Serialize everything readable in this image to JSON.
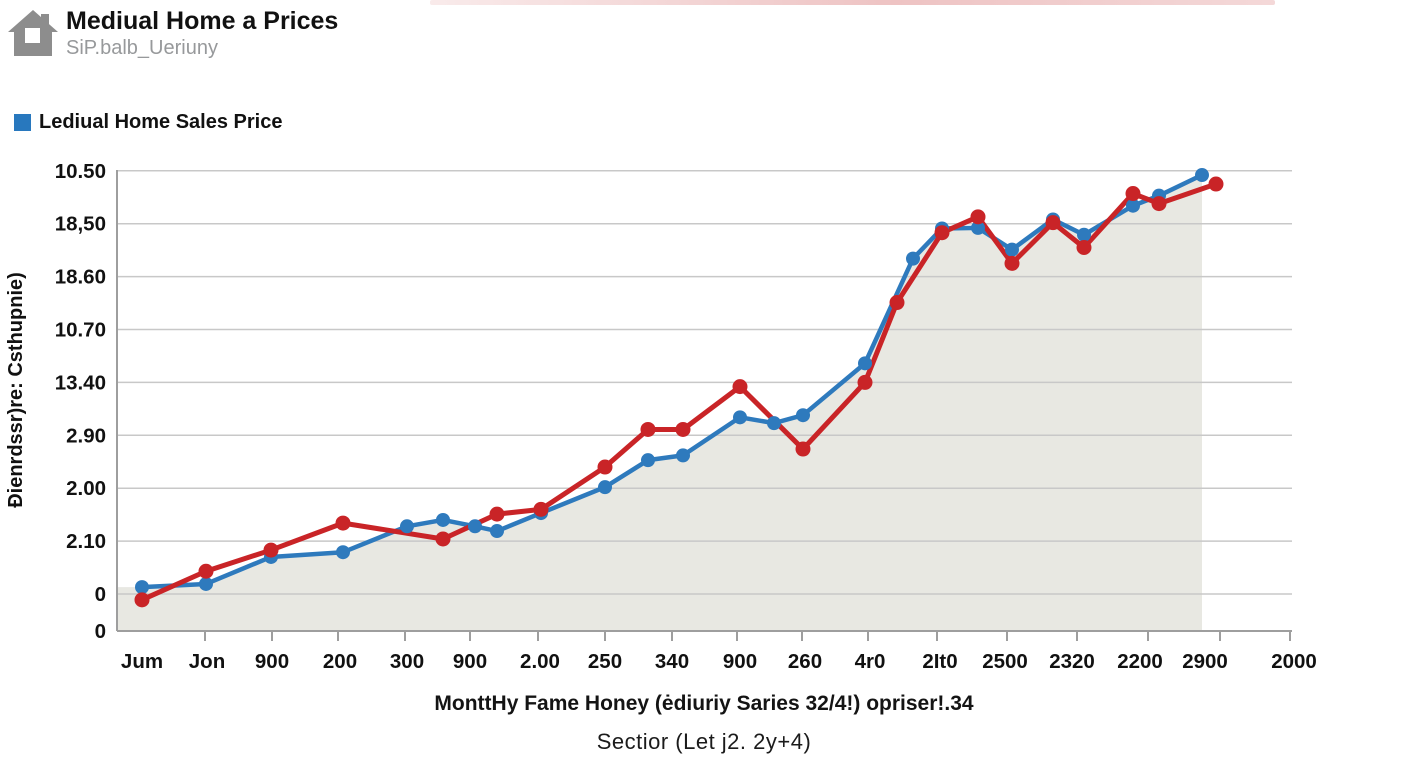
{
  "header": {
    "title": "Mediual Home a Prices",
    "subtitle": "SiP.balb_Ueriuny"
  },
  "legend": {
    "label": "Lediual Home Sales Price",
    "swatch_color": "#2878be"
  },
  "captions": {
    "line1": "MonttHy Fame Honey (ėdiuriy Saries 32/4!) opriser!.34",
    "line2": "Sectior (Let j2. 2y+4)"
  },
  "icons": {
    "house_color": "#8d8d8d"
  },
  "chart_data": {
    "type": "line",
    "title": "Lediual Home Sales Price",
    "xlabel": "",
    "ylabel": "Ðienrdssr)re: Csthupnie)",
    "grid": true,
    "legend_position": "top-left",
    "note": "axis tick text is garbled in source; series values v are in gridline units (0 = lowest gridline, 8 = top gridline)",
    "y_tick_labels": [
      "10.50",
      "18,50",
      "18.60",
      "10.70",
      "13.40",
      "2.90",
      "2.00",
      "2.10",
      "0",
      "0"
    ],
    "x_ticks": [
      {
        "label": "Jum",
        "x": 142
      },
      {
        "label": "Jon",
        "x": 207
      },
      {
        "label": "900",
        "x": 272
      },
      {
        "label": "200",
        "x": 340
      },
      {
        "label": "300",
        "x": 407
      },
      {
        "label": "900",
        "x": 470
      },
      {
        "label": "2.00",
        "x": 540
      },
      {
        "label": "250",
        "x": 605
      },
      {
        "label": "340",
        "x": 672
      },
      {
        "label": "900",
        "x": 740
      },
      {
        "label": "260",
        "x": 805
      },
      {
        "label": "4r0",
        "x": 870
      },
      {
        "label": "2It0",
        "x": 940
      },
      {
        "label": "2500",
        "x": 1005
      },
      {
        "label": "2320",
        "x": 1072
      },
      {
        "label": "2200",
        "x": 1140
      },
      {
        "label": "2900",
        "x": 1205
      },
      {
        "label": "2000",
        "x": 1294
      }
    ],
    "series": [
      {
        "name": "blue-series",
        "color": "#2e7abd",
        "line_width": 4.5,
        "marker_radius": 7,
        "points": [
          {
            "x": 142,
            "v": 0.13
          },
          {
            "x": 206,
            "v": 0.19
          },
          {
            "x": 271,
            "v": 0.7
          },
          {
            "x": 343,
            "v": 0.79
          },
          {
            "x": 407,
            "v": 1.28
          },
          {
            "x": 443,
            "v": 1.4
          },
          {
            "x": 475,
            "v": 1.28
          },
          {
            "x": 497,
            "v": 1.19
          },
          {
            "x": 541,
            "v": 1.53
          },
          {
            "x": 605,
            "v": 2.02
          },
          {
            "x": 648,
            "v": 2.53
          },
          {
            "x": 683,
            "v": 2.62
          },
          {
            "x": 740,
            "v": 3.34
          },
          {
            "x": 774,
            "v": 3.23
          },
          {
            "x": 803,
            "v": 3.38
          },
          {
            "x": 865,
            "v": 4.36
          },
          {
            "x": 913,
            "v": 6.34
          },
          {
            "x": 942,
            "v": 6.91
          },
          {
            "x": 978,
            "v": 6.92
          },
          {
            "x": 1012,
            "v": 6.51
          },
          {
            "x": 1053,
            "v": 7.08
          },
          {
            "x": 1084,
            "v": 6.79
          },
          {
            "x": 1133,
            "v": 7.34
          },
          {
            "x": 1159,
            "v": 7.53
          },
          {
            "x": 1202,
            "v": 7.92
          }
        ]
      },
      {
        "name": "red-series",
        "color": "#c92427",
        "line_width": 5,
        "marker_radius": 7.5,
        "points": [
          {
            "x": 142,
            "v": -0.11
          },
          {
            "x": 206,
            "v": 0.43
          },
          {
            "x": 271,
            "v": 0.83
          },
          {
            "x": 343,
            "v": 1.34
          },
          {
            "x": 443,
            "v": 1.04
          },
          {
            "x": 497,
            "v": 1.51
          },
          {
            "x": 541,
            "v": 1.6
          },
          {
            "x": 605,
            "v": 2.4
          },
          {
            "x": 648,
            "v": 3.11
          },
          {
            "x": 683,
            "v": 3.11
          },
          {
            "x": 740,
            "v": 3.92
          },
          {
            "x": 803,
            "v": 2.74
          },
          {
            "x": 865,
            "v": 4.0
          },
          {
            "x": 897,
            "v": 5.51
          },
          {
            "x": 942,
            "v": 6.83
          },
          {
            "x": 978,
            "v": 7.13
          },
          {
            "x": 1012,
            "v": 6.25
          },
          {
            "x": 1053,
            "v": 7.02
          },
          {
            "x": 1084,
            "v": 6.55
          },
          {
            "x": 1133,
            "v": 7.57
          },
          {
            "x": 1159,
            "v": 7.38
          },
          {
            "x": 1216,
            "v": 7.75
          }
        ]
      }
    ],
    "area": {
      "under_series": 0,
      "color": "#e8e8e2",
      "left_x": 117,
      "right_x": 1202
    },
    "layout": {
      "plot_left": 117,
      "plot_bottom": 631,
      "axis_right": 1292,
      "plot_top": 170,
      "unit_zero_y": 594,
      "unit_spacing": 52.9,
      "gridline_units": [
        0,
        1,
        2,
        3,
        4,
        5,
        6,
        7,
        8
      ],
      "x_tick_marks": [
        205,
        272,
        338,
        405,
        470,
        538,
        605,
        672,
        737,
        802,
        868,
        937,
        1007,
        1077,
        1148,
        1220,
        1290
      ],
      "grid_color": "#c8c8c8",
      "axis_color": "#9e9e9e",
      "tick_font_size": 20.5,
      "tick_color": "#111111",
      "ylabel_x": 22,
      "ylabel_y": 390,
      "y_tick_right_x": 106,
      "x_tick_y": 668
    }
  }
}
